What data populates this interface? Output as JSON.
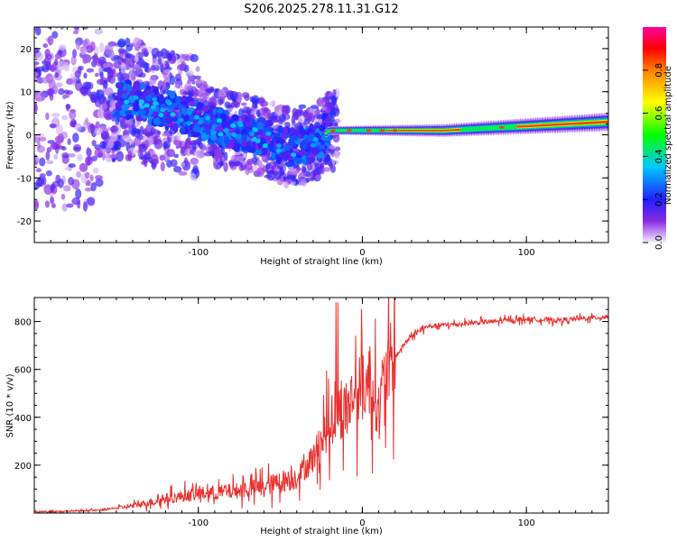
{
  "title": "S206.2025.278.11.31.G12",
  "chart_data": [
    {
      "type": "heatmap",
      "xlabel": "Height of straight line (km)",
      "ylabel": "Frequency (Hz)",
      "xlim": [
        -200,
        150
      ],
      "ylim": [
        -25,
        25
      ],
      "xticks": [
        -100,
        0,
        100
      ],
      "yticks": [
        -20,
        -10,
        0,
        10,
        20
      ],
      "colorbar": {
        "label": "Normalized spectral amplitude",
        "range": [
          0,
          1
        ],
        "ticks": [
          "0.0",
          "0.2",
          "0.4",
          "0.6",
          "0.8"
        ]
      },
      "description_series": [
        {
          "name": "noise scatter",
          "x_range": [
            -200,
            -20
          ],
          "freq_spread": 20
        },
        {
          "name": "main ridge",
          "points": [
            {
              "x": -140,
              "y": 8
            },
            {
              "x": -110,
              "y": 5
            },
            {
              "x": -90,
              "y": 2
            },
            {
              "x": -65,
              "y": 0
            },
            {
              "x": -45,
              "y": -3
            },
            {
              "x": -30,
              "y": -2
            },
            {
              "x": -20,
              "y": 1
            },
            {
              "x": 0,
              "y": 1
            },
            {
              "x": 50,
              "y": 1
            },
            {
              "x": 100,
              "y": 2
            },
            {
              "x": 150,
              "y": 3
            }
          ]
        }
      ]
    },
    {
      "type": "line",
      "xlabel": "Height of straight line (km)",
      "ylabel": "SNR (10 * v/v)",
      "xlim": [
        -200,
        150
      ],
      "ylim": [
        0,
        900
      ],
      "xticks": [
        -100,
        0,
        100
      ],
      "yticks": [
        200,
        400,
        600,
        800
      ],
      "color": "#e8302e",
      "series": [
        {
          "name": "SNR",
          "x": [
            -200,
            -180,
            -160,
            -140,
            -120,
            -100,
            -80,
            -60,
            -40,
            -30,
            -25,
            -20,
            -15,
            -10,
            -5,
            0,
            5,
            10,
            15,
            20,
            25,
            30,
            40,
            60,
            80,
            100,
            120,
            150
          ],
          "y": [
            5,
            8,
            12,
            30,
            60,
            80,
            90,
            110,
            150,
            230,
            300,
            380,
            420,
            430,
            500,
            520,
            560,
            430,
            600,
            650,
            700,
            740,
            780,
            790,
            800,
            810,
            805,
            820
          ]
        }
      ]
    }
  ]
}
